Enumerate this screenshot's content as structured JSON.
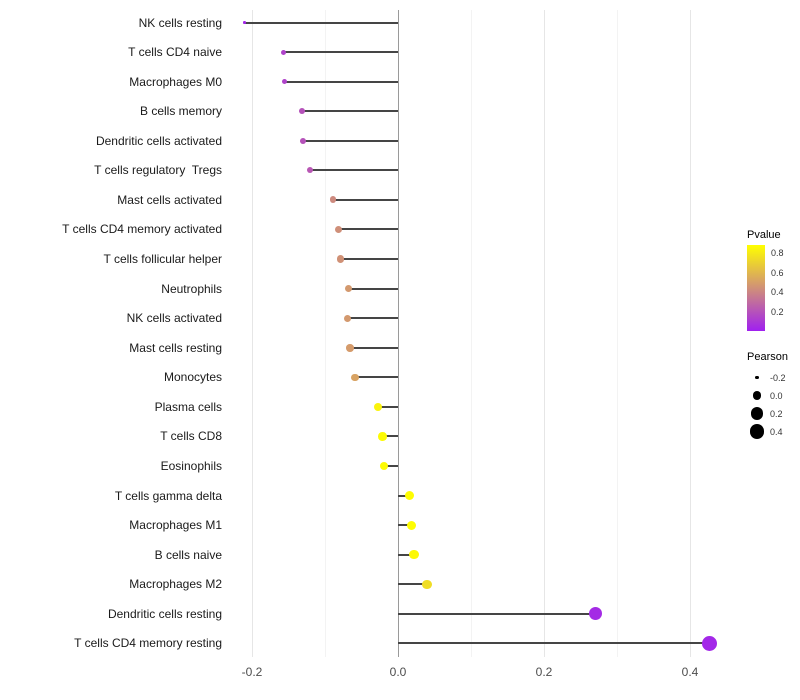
{
  "chart_data": {
    "type": "lollipop",
    "orientation": "horizontal",
    "panel_background": "#ffffff",
    "zero_line_color": "#9a9a9a",
    "stem_color": "#454545",
    "x_axis": {
      "ticks": [
        {
          "label": "-0.2",
          "value": -0.2
        },
        {
          "label": "0.0",
          "value": 0.0
        },
        {
          "label": "0.2",
          "value": 0.2
        },
        {
          "label": "0.4",
          "value": 0.4
        }
      ],
      "minor_ticks": [
        -0.1,
        0.1,
        0.3
      ],
      "range": [
        -0.235,
        0.52
      ]
    },
    "rows": [
      {
        "label": "NK cells resting",
        "pearson": -0.21,
        "pvalue": 0.03
      },
      {
        "label": "T cells CD4 naive",
        "pearson": -0.157,
        "pvalue": 0.14
      },
      {
        "label": "Macrophages M0",
        "pearson": -0.156,
        "pvalue": 0.14
      },
      {
        "label": "B cells memory",
        "pearson": -0.131,
        "pvalue": 0.2
      },
      {
        "label": "Dendritic cells activated",
        "pearson": -0.13,
        "pvalue": 0.2
      },
      {
        "label": "T cells regulatory  Tregs",
        "pearson": -0.121,
        "pvalue": 0.22
      },
      {
        "label": "Mast cells activated",
        "pearson": -0.089,
        "pvalue": 0.42
      },
      {
        "label": "T cells CD4 memory activated",
        "pearson": -0.082,
        "pvalue": 0.44
      },
      {
        "label": "T cells follicular helper",
        "pearson": -0.079,
        "pvalue": 0.45
      },
      {
        "label": "Neutrophils",
        "pearson": -0.068,
        "pvalue": 0.48
      },
      {
        "label": "NK cells activated",
        "pearson": -0.069,
        "pvalue": 0.48
      },
      {
        "label": "Mast cells resting",
        "pearson": -0.066,
        "pvalue": 0.49
      },
      {
        "label": "Monocytes",
        "pearson": -0.059,
        "pvalue": 0.52
      },
      {
        "label": "Plasma cells",
        "pearson": -0.027,
        "pvalue": 0.84
      },
      {
        "label": "T cells CD8",
        "pearson": -0.021,
        "pvalue": 0.87
      },
      {
        "label": "Eosinophils",
        "pearson": -0.019,
        "pvalue": 0.87
      },
      {
        "label": "T cells gamma delta",
        "pearson": 0.016,
        "pvalue": 0.88
      },
      {
        "label": "Macrophages M1",
        "pearson": 0.019,
        "pvalue": 0.88
      },
      {
        "label": "B cells naive",
        "pearson": 0.022,
        "pvalue": 0.86
      },
      {
        "label": "Macrophages M2",
        "pearson": 0.04,
        "pvalue": 0.75
      },
      {
        "label": "Dendritic cells resting",
        "pearson": 0.27,
        "pvalue": 0.04
      },
      {
        "label": "T cells CD4 memory resting",
        "pearson": 0.427,
        "pvalue": 0.03
      }
    ],
    "pvalue_legend": {
      "title": "Pvalue",
      "tick_labels": [
        "0.8",
        "0.6",
        "0.4",
        "0.2"
      ],
      "tick_values": [
        0.8,
        0.6,
        0.4,
        0.2
      ],
      "domain": [
        0,
        0.886
      ],
      "low_color": "#A020F0",
      "high_color": "#FFFF00"
    },
    "pearson_legend": {
      "title": "Pearson",
      "items": [
        {
          "label": "-0.2",
          "value": -0.2
        },
        {
          "label": "0.0",
          "value": 0.0
        },
        {
          "label": "0.2",
          "value": 0.2
        },
        {
          "label": "0.4",
          "value": 0.4
        }
      ],
      "dot_color": "#000000"
    }
  }
}
